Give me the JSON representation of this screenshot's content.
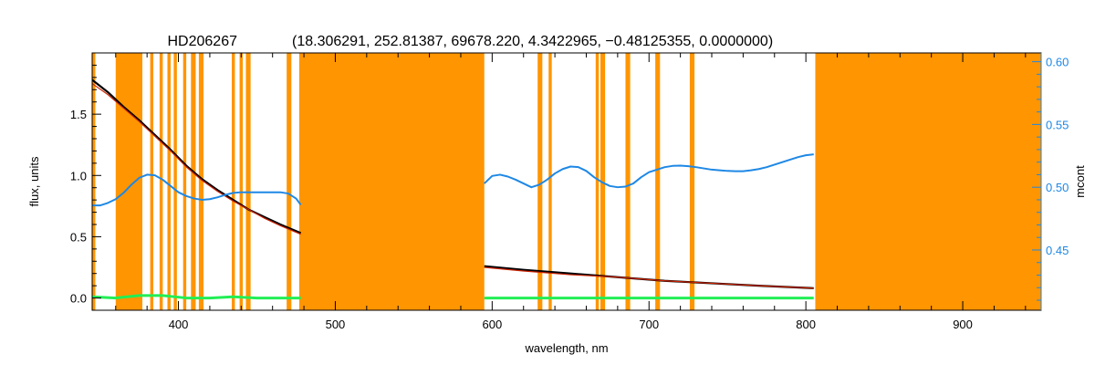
{
  "chart_data": {
    "type": "line",
    "title": "HD206267",
    "subtitle": "(18.306291, 252.81387, 69678.220, 4.3422965, −0.48125355, 0.0000000)",
    "xlabel": "wavelength, nm",
    "ylabel": "flux, units",
    "y2label": "mcont",
    "xlim": [
      345,
      950
    ],
    "ylim": [
      -0.1,
      2.0
    ],
    "y2lim": [
      0.402,
      0.607
    ],
    "xticks": [
      400,
      500,
      600,
      700,
      800,
      900
    ],
    "yticks": [
      0.0,
      0.5,
      1.0,
      1.5
    ],
    "y2ticks": [
      0.45,
      0.5,
      0.55,
      0.6
    ],
    "ytick_labels": [
      "0.0",
      "0.5",
      "1.0",
      "1.5"
    ],
    "y2tick_labels": [
      "0.45",
      "0.50",
      "0.55",
      "0.60"
    ],
    "colors": {
      "mask": "#FF9500",
      "observed": "#000000",
      "model": "#CC2200",
      "model_fill": "#FFEE00",
      "mcont": "#1E88E5",
      "residual": "#22EE55",
      "axis": "#000000",
      "right_axis": "#1E88E5"
    },
    "masked_ranges": [
      [
        345,
        347
      ],
      [
        360,
        377
      ],
      [
        382,
        384
      ],
      [
        388,
        390
      ],
      [
        393,
        395
      ],
      [
        397,
        399
      ],
      [
        403,
        405
      ],
      [
        408,
        411
      ],
      [
        413,
        416
      ],
      [
        434,
        436
      ],
      [
        439,
        441
      ],
      [
        443,
        446
      ],
      [
        469,
        472
      ],
      [
        477,
        595
      ],
      [
        629,
        632
      ],
      [
        636,
        638
      ],
      [
        666,
        668
      ],
      [
        669,
        672
      ],
      [
        685,
        688
      ],
      [
        704,
        707
      ],
      [
        726,
        729
      ],
      [
        806,
        950
      ]
    ],
    "series": [
      {
        "name": "observed",
        "axis": "left",
        "segments": [
          {
            "x": [
              345,
              355,
              365,
              375,
              385,
              395,
              405,
              415,
              425,
              435,
              445,
              455,
              465,
              478
            ],
            "y": [
              1.78,
              1.68,
              1.56,
              1.45,
              1.33,
              1.21,
              1.08,
              0.97,
              0.88,
              0.8,
              0.72,
              0.66,
              0.6,
              0.53
            ]
          },
          {
            "x": [
              595,
              620,
              650,
              680,
              710,
              740,
              770,
              805
            ],
            "y": [
              0.26,
              0.23,
              0.2,
              0.17,
              0.14,
              0.12,
              0.1,
              0.08
            ]
          }
        ]
      },
      {
        "name": "model",
        "axis": "left",
        "segments": [
          {
            "x": [
              345,
              355,
              365,
              375,
              385,
              395,
              405,
              415,
              425,
              435,
              445,
              455,
              465,
              478
            ],
            "y": [
              1.75,
              1.66,
              1.55,
              1.44,
              1.32,
              1.2,
              1.07,
              0.96,
              0.87,
              0.79,
              0.72,
              0.65,
              0.59,
              0.52
            ]
          },
          {
            "x": [
              595,
              620,
              650,
              680,
              710,
              740,
              770,
              805
            ],
            "y": [
              0.25,
              0.22,
              0.19,
              0.17,
              0.14,
              0.12,
              0.1,
              0.08
            ]
          }
        ]
      },
      {
        "name": "mcont",
        "axis": "right",
        "segments": [
          {
            "x": [
              345,
              350,
              355,
              360,
              365,
              370,
              375,
              380,
              385,
              390,
              395,
              400,
              405,
              410,
              415,
              420,
              425,
              430,
              435,
              440,
              445,
              450,
              455,
              460,
              465,
              470,
              475,
              478
            ],
            "y": [
              0.4855,
              0.4855,
              0.4875,
              0.4905,
              0.4955,
              0.502,
              0.5075,
              0.51,
              0.5095,
              0.506,
              0.501,
              0.496,
              0.493,
              0.491,
              0.49,
              0.4905,
              0.492,
              0.494,
              0.4955,
              0.496,
              0.496,
              0.496,
              0.496,
              0.496,
              0.496,
              0.495,
              0.491,
              0.486
            ]
          },
          {
            "x": [
              595,
              600,
              605,
              610,
              615,
              620,
              625,
              630,
              635,
              640,
              645,
              650,
              655,
              660,
              665,
              670,
              675,
              680,
              685,
              690,
              695,
              700,
              705,
              710,
              715,
              720,
              725,
              730,
              735,
              740,
              745,
              750,
              755,
              760,
              765,
              770,
              775,
              780,
              785,
              790,
              795,
              800,
              805
            ],
            "y": [
              0.503,
              0.509,
              0.51,
              0.5085,
              0.506,
              0.503,
              0.5,
              0.502,
              0.506,
              0.511,
              0.5145,
              0.5165,
              0.516,
              0.513,
              0.508,
              0.504,
              0.501,
              0.5,
              0.5005,
              0.503,
              0.508,
              0.512,
              0.514,
              0.516,
              0.517,
              0.5172,
              0.5168,
              0.516,
              0.515,
              0.514,
              0.5135,
              0.513,
              0.5128,
              0.5128,
              0.5135,
              0.5145,
              0.516,
              0.518,
              0.52,
              0.522,
              0.524,
              0.5255,
              0.5262
            ]
          }
        ]
      },
      {
        "name": "residual",
        "axis": "left",
        "segments": [
          {
            "x": [
              345,
              360,
              375,
              390,
              405,
              420,
              435,
              450,
              465,
              478
            ],
            "y": [
              0.01,
              0.0,
              0.02,
              0.02,
              0.0,
              0.0,
              0.01,
              0.0,
              0.0,
              0.0
            ]
          },
          {
            "x": [
              595,
              650,
              700,
              750,
              805
            ],
            "y": [
              0.0,
              0.0,
              0.0,
              0.0,
              0.0
            ]
          }
        ]
      }
    ]
  }
}
